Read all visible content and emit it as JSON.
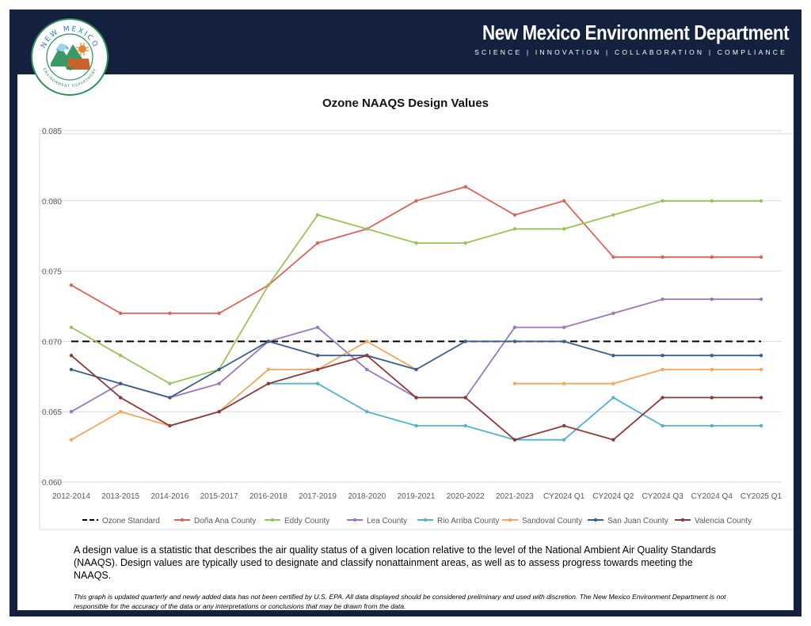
{
  "header": {
    "title": "New Mexico Environment Department",
    "tagline": "SCIENCE | INNOVATION | COLLABORATION | COMPLIANCE",
    "logo": {
      "top_text": "NEW MEXICO",
      "bottom_text": "ENVIRONMENT DEPARTMENT",
      "icon": "nmed-seal-logo"
    },
    "navy_color": "#13213f"
  },
  "chart_data": {
    "type": "line",
    "title": "Ozone NAAQS Design Values",
    "xlabel": "",
    "ylabel": "",
    "categories": [
      "2012-2014",
      "2013-2015",
      "2014-2016",
      "2015-2017",
      "2016-2018",
      "2017-2019",
      "2018-2020",
      "2019-2021",
      "2020-2022",
      "2021-2023",
      "CY2024 Q1",
      "CY2024 Q2",
      "CY2024 Q3",
      "CY2024 Q4",
      "CY2025 Q1"
    ],
    "ylim": [
      0.06,
      0.085
    ],
    "yticks": [
      "0.060",
      "0.065",
      "0.070",
      "0.075",
      "0.080",
      "0.085"
    ],
    "grid": true,
    "legend_position": "bottom",
    "series": [
      {
        "name": "Ozone Standard",
        "color": "#000000",
        "dashed": true,
        "markers": false,
        "values": [
          0.07,
          0.07,
          0.07,
          0.07,
          0.07,
          0.07,
          0.07,
          0.07,
          0.07,
          0.07,
          0.07,
          0.07,
          0.07,
          0.07,
          0.07
        ]
      },
      {
        "name": "Doña Ana County",
        "color": "#d9655a",
        "values": [
          0.074,
          0.072,
          0.072,
          0.072,
          0.074,
          0.077,
          0.078,
          0.08,
          0.081,
          0.079,
          0.08,
          0.076,
          0.076,
          0.076,
          0.076
        ]
      },
      {
        "name": "Eddy County",
        "color": "#9cc25a",
        "values": [
          0.071,
          0.069,
          0.067,
          0.068,
          0.074,
          0.079,
          0.078,
          0.077,
          0.077,
          0.078,
          0.078,
          0.079,
          0.08,
          0.08,
          0.08
        ]
      },
      {
        "name": "Lea County",
        "color": "#9b78b8",
        "values": [
          0.065,
          0.067,
          0.066,
          0.067,
          0.07,
          0.071,
          0.068,
          0.066,
          0.066,
          0.071,
          0.071,
          0.072,
          0.073,
          0.073,
          0.073
        ]
      },
      {
        "name": "Rio Arriba County",
        "color": "#52b3c9",
        "values": [
          null,
          null,
          null,
          null,
          0.067,
          0.067,
          0.065,
          0.064,
          0.064,
          0.063,
          0.063,
          0.066,
          0.064,
          0.064,
          0.064
        ]
      },
      {
        "name": "Sandoval County",
        "color": "#f5a55a",
        "values": [
          0.063,
          0.065,
          0.064,
          0.065,
          0.068,
          0.068,
          0.07,
          0.068,
          null,
          0.067,
          0.067,
          0.067,
          0.068,
          0.068,
          0.068
        ]
      },
      {
        "name": "San Juan County",
        "color": "#3a5f8a",
        "values": [
          0.068,
          0.067,
          0.066,
          0.068,
          0.07,
          0.069,
          0.069,
          0.068,
          0.07,
          0.07,
          0.07,
          0.069,
          0.069,
          0.069,
          0.069
        ]
      },
      {
        "name": "Valencia County",
        "color": "#8b3a3a",
        "values": [
          0.069,
          0.066,
          0.064,
          0.065,
          0.067,
          0.068,
          0.069,
          0.066,
          0.066,
          0.063,
          0.064,
          0.063,
          0.066,
          0.066,
          0.066
        ]
      }
    ]
  },
  "description": "A design value is a statistic that describes the air quality status of a given location relative to the level of the National Ambient Air Quality Standards (NAAQS). Design values are typically used to designate and classify nonattainment areas, as well as to assess progress towards meeting the NAAQS.",
  "disclaimer": "This graph is updated quarterly and newly added data has not been certified by U.S. EPA. All data displayed should be considered preliminary and used with discretion. The New Mexico Environment Department is not responsible for the accuracy of the data or any interpretations or conclusions that may be drawn from the data."
}
